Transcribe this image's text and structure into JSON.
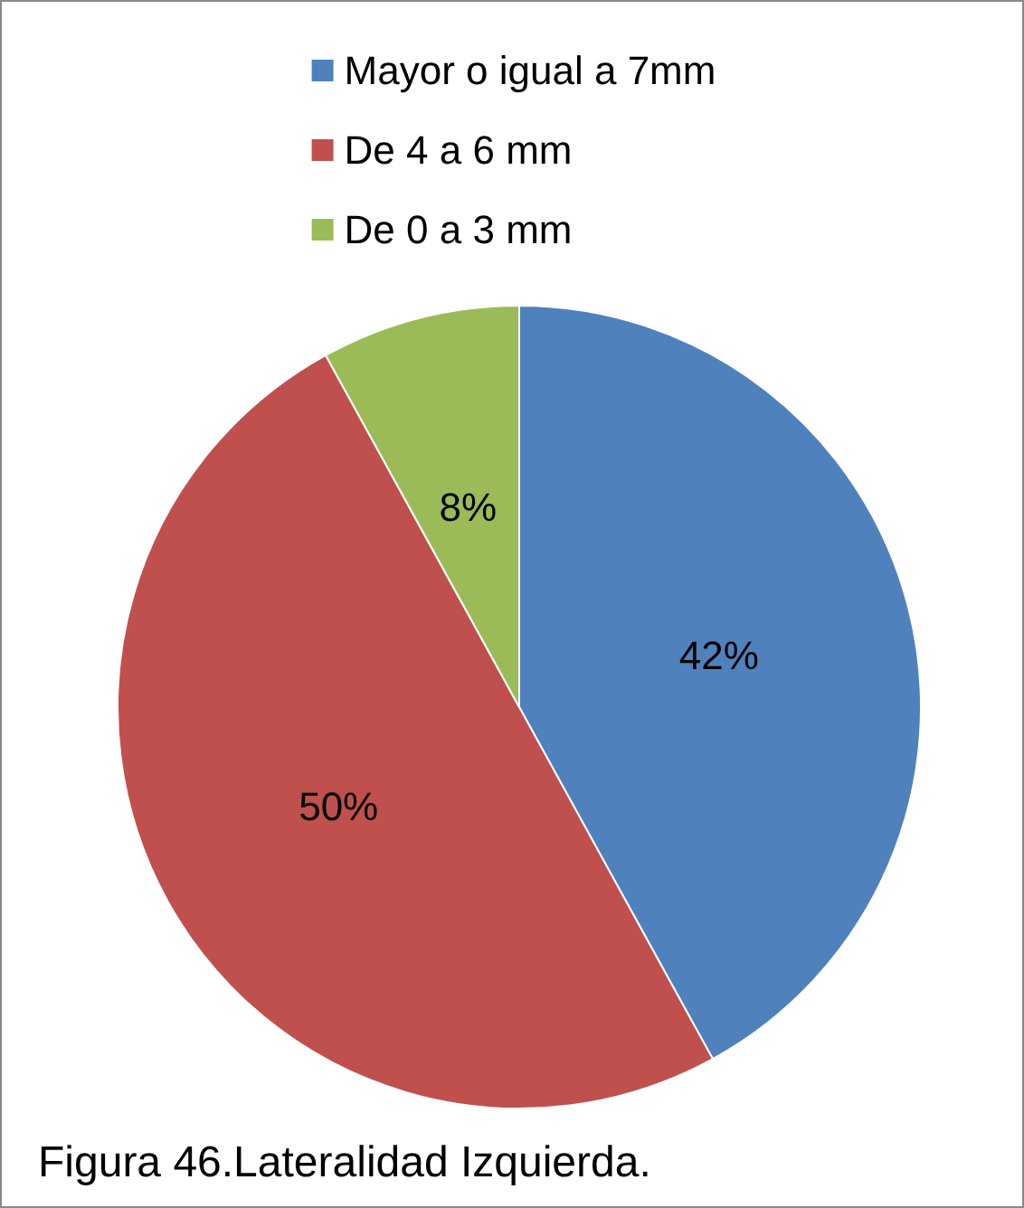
{
  "chart_data": {
    "type": "pie",
    "categories": [
      "Mayor o igual a 7mm",
      "De 4 a 6 mm",
      "De 0 a 3 mm"
    ],
    "values": [
      42,
      50,
      8
    ],
    "colors": [
      "#4f81bd",
      "#c0504d",
      "#9bbb59"
    ],
    "value_labels": [
      "42%",
      "50%",
      "8%"
    ],
    "legend": "top",
    "annotations": [
      "Figura 46.Lateralidad Izquierda."
    ]
  }
}
